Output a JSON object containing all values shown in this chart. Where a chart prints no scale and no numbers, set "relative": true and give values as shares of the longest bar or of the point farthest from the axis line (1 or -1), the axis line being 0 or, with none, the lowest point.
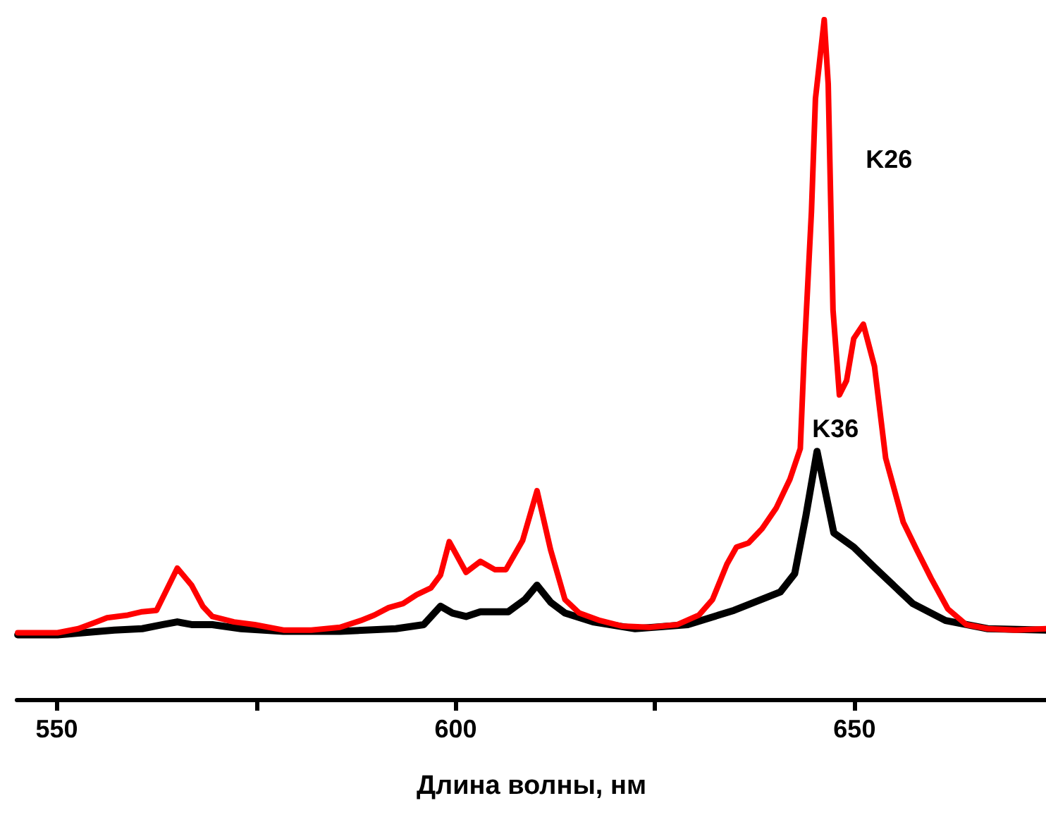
{
  "chart_data": {
    "type": "line",
    "xlabel": "Длина волны, нм",
    "relative": true,
    "xlim": [
      545,
      674
    ],
    "xticks": [
      550,
      {
        "value": 575,
        "label": null
      },
      600,
      {
        "value": 625,
        "label": null
      },
      650
    ],
    "grid": false,
    "legend": false,
    "line_style": "solid",
    "series": [
      {
        "name": "K26",
        "color": "#ff0000",
        "x": [
          545.1,
          550.1,
          552.7,
          555.0,
          556.3,
          558.9,
          560.7,
          562.5,
          565.1,
          566.9,
          568.3,
          569.5,
          572.2,
          574.8,
          578.4,
          581.9,
          585.5,
          588.1,
          589.8,
          591.6,
          593.4,
          595.1,
          596.9,
          598.1,
          599.2,
          601.3,
          603.1,
          604.9,
          606.3,
          608.4,
          610.2,
          611.9,
          613.7,
          615.5,
          618.1,
          620.8,
          624.3,
          627.8,
          630.5,
          632.2,
          634.0,
          635.2,
          636.7,
          638.4,
          640.2,
          641.9,
          643.2,
          643.7,
          644.6,
          645.1,
          646.2,
          646.7,
          647.3,
          648.1,
          649.0,
          649.9,
          651.1,
          652.5,
          653.9,
          656.1,
          657.8,
          659.6,
          661.7,
          664.0,
          666.7,
          670.2,
          674.0
        ],
        "values": [
          0.098,
          0.098,
          0.104,
          0.114,
          0.12,
          0.124,
          0.129,
          0.131,
          0.193,
          0.168,
          0.137,
          0.122,
          0.114,
          0.11,
          0.102,
          0.102,
          0.106,
          0.116,
          0.124,
          0.135,
          0.141,
          0.154,
          0.164,
          0.183,
          0.232,
          0.187,
          0.203,
          0.191,
          0.191,
          0.234,
          0.307,
          0.22,
          0.147,
          0.127,
          0.116,
          0.108,
          0.106,
          0.11,
          0.124,
          0.147,
          0.199,
          0.224,
          0.23,
          0.251,
          0.282,
          0.324,
          0.369,
          0.51,
          0.718,
          0.884,
          1,
          0.905,
          0.573,
          0.448,
          0.469,
          0.531,
          0.552,
          0.49,
          0.355,
          0.261,
          0.22,
          0.178,
          0.133,
          0.11,
          0.104,
          0.102,
          0.104
        ]
      },
      {
        "name": "K36",
        "color": "#000000",
        "x": [
          545.1,
          550.1,
          557.2,
          560.7,
          563.3,
          565.1,
          566.9,
          569.5,
          573.1,
          578.4,
          585.5,
          592.5,
          596.0,
          598.1,
          599.6,
          601.3,
          603.1,
          606.6,
          608.7,
          610.2,
          611.9,
          613.7,
          617.2,
          622.5,
          629.1,
          634.9,
          640.7,
          642.5,
          643.9,
          645.3,
          647.4,
          649.9,
          652.6,
          657.3,
          661.4,
          666.7,
          674.0
        ],
        "values": [
          0.095,
          0.095,
          0.102,
          0.104,
          0.11,
          0.114,
          0.11,
          0.11,
          0.104,
          0.1,
          0.1,
          0.104,
          0.11,
          0.137,
          0.127,
          0.122,
          0.129,
          0.129,
          0.147,
          0.168,
          0.143,
          0.127,
          0.114,
          0.104,
          0.11,
          0.131,
          0.158,
          0.185,
          0.27,
          0.365,
          0.245,
          0.224,
          0.193,
          0.141,
          0.116,
          0.104,
          0.102
        ]
      }
    ]
  }
}
